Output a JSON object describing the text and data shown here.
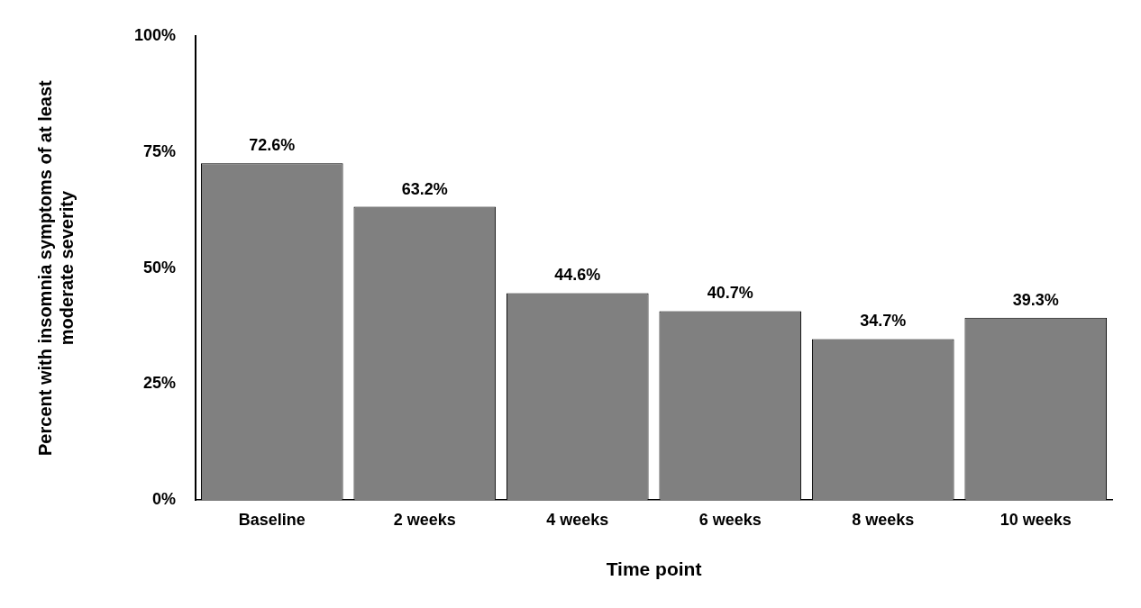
{
  "chart_data": {
    "type": "bar",
    "xlabel": "Time point",
    "ylabel": "Percent with insomnia symptoms of at least moderate severity",
    "categories": [
      "Baseline",
      "2 weeks",
      "4 weeks",
      "6 weeks",
      "8 weeks",
      "10 weeks"
    ],
    "values": [
      72.6,
      63.2,
      44.6,
      40.7,
      34.7,
      39.3
    ],
    "value_labels": [
      "72.6%",
      "63.2%",
      "44.6%",
      "40.7%",
      "34.7%",
      "39.3%"
    ],
    "color": "#808080",
    "ylim": [
      0,
      100
    ],
    "yticks": [
      {
        "value": 0,
        "label": "0%"
      },
      {
        "value": 25,
        "label": "25%"
      },
      {
        "value": 50,
        "label": "50%"
      },
      {
        "value": 75,
        "label": "75%"
      },
      {
        "value": 100,
        "label": "100%"
      }
    ],
    "grid": false,
    "legend": false
  }
}
